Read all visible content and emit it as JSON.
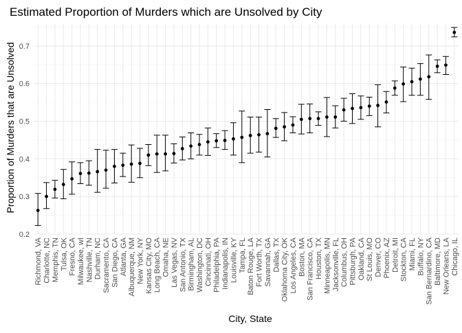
{
  "chart_data": {
    "type": "scatter",
    "title": "Estimated Proportion of Murders which are Unsolved by City",
    "xlabel": "City, State",
    "ylabel": "Proportion of Murders that are Unsolved",
    "ylim": [
      0.2,
      0.76
    ],
    "yticks": [
      0.2,
      0.3,
      0.4,
      0.5,
      0.6,
      0.7
    ],
    "grid": true,
    "legend": "none",
    "point_color": "#000000",
    "errorbar_color": "#000000",
    "categories": [
      "Richmond, VA",
      "Charlotte, NC",
      "Memphis, TN",
      "Tulsa, OK",
      "Fresno, CA",
      "Milwaukee, wI",
      "Nashville, TN",
      "Durham, NC",
      "Sacramento, CA",
      "San Diego, CA",
      "Atlanta, GA",
      "Albuquerque, NM",
      "New York, NY",
      "Kansas City, MO",
      "Long Beach, CA",
      "Omaha, NE",
      "Las Vegas, NV",
      "San Antonio, TX",
      "Birmingham, AL",
      "Washington, DC",
      "Cincinnati, OH",
      "Philadelphia, PA",
      "Indianapolis, IN",
      "Louisville, KY",
      "Tampa, FL",
      "Baton Rouge, LA",
      "Fort Worth, TX",
      "Savannah, GA",
      "Dallas, TX",
      "Oklahoma City, OK",
      "Los Angeles, CA",
      "Boston, MA",
      "San Francisco, CA",
      "Houston, TX",
      "Minneapolis, MN",
      "Jacksonville, FL",
      "Columbus, OH",
      "Pittsburgh, PA",
      "Oakland, CA",
      "St Louis, MO",
      "Denver, CO",
      "Phoenix, AZ",
      "Detroit, MI",
      "Stockton, CA",
      "Miami, FL",
      "Buffalo, NY",
      "San Bernardino, CA",
      "Baltimore, MD",
      "New Orleans, LA",
      "Chicago, IL"
    ],
    "series": [
      {
        "estimate": [
          0.263,
          0.3,
          0.319,
          0.332,
          0.347,
          0.361,
          0.362,
          0.366,
          0.37,
          0.38,
          0.383,
          0.386,
          0.388,
          0.41,
          0.413,
          0.413,
          0.414,
          0.427,
          0.434,
          0.438,
          0.445,
          0.448,
          0.449,
          0.453,
          0.457,
          0.462,
          0.464,
          0.467,
          0.481,
          0.485,
          0.49,
          0.505,
          0.507,
          0.507,
          0.511,
          0.511,
          0.53,
          0.534,
          0.536,
          0.54,
          0.542,
          0.551,
          0.588,
          0.599,
          0.605,
          0.612,
          0.618,
          0.646,
          0.649,
          0.736
        ],
        "lower": [
          0.223,
          0.268,
          0.296,
          0.294,
          0.306,
          0.334,
          0.33,
          0.311,
          0.322,
          0.336,
          0.353,
          0.338,
          0.35,
          0.382,
          0.364,
          0.368,
          0.389,
          0.397,
          0.4,
          0.41,
          0.409,
          0.43,
          0.425,
          0.41,
          0.39,
          0.415,
          0.418,
          0.405,
          0.457,
          0.448,
          0.469,
          0.466,
          0.469,
          0.489,
          0.459,
          0.482,
          0.5,
          0.494,
          0.505,
          0.515,
          0.485,
          0.522,
          0.569,
          0.552,
          0.569,
          0.569,
          0.558,
          0.629,
          0.624,
          0.724
        ],
        "upper": [
          0.308,
          0.337,
          0.343,
          0.372,
          0.392,
          0.39,
          0.395,
          0.425,
          0.423,
          0.425,
          0.415,
          0.437,
          0.428,
          0.438,
          0.463,
          0.463,
          0.44,
          0.458,
          0.469,
          0.465,
          0.482,
          0.467,
          0.475,
          0.496,
          0.527,
          0.511,
          0.511,
          0.531,
          0.507,
          0.523,
          0.512,
          0.545,
          0.546,
          0.525,
          0.563,
          0.541,
          0.561,
          0.573,
          0.567,
          0.564,
          0.597,
          0.579,
          0.607,
          0.644,
          0.641,
          0.653,
          0.676,
          0.663,
          0.672,
          0.749
        ]
      }
    ]
  }
}
